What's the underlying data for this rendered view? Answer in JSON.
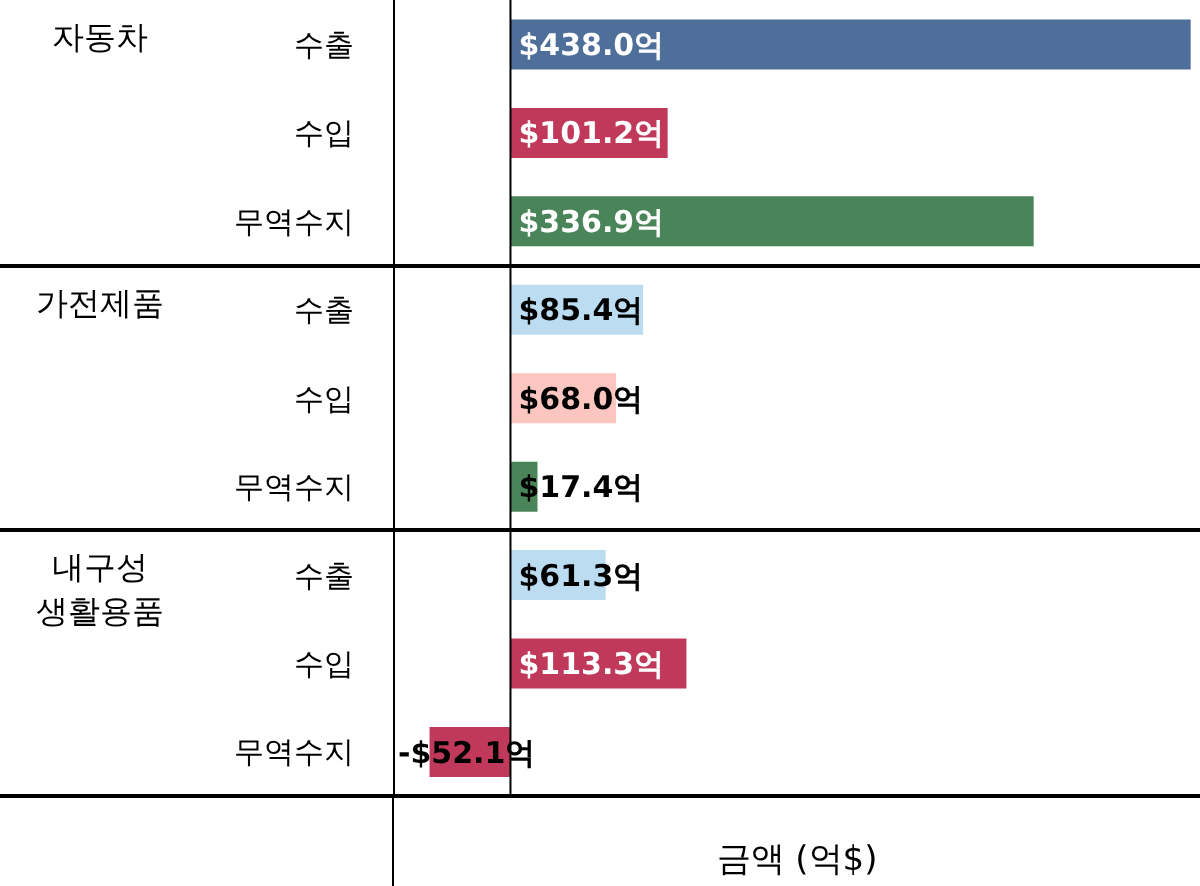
{
  "chart_data": {
    "type": "bar",
    "orientation": "horizontal",
    "xlabel": "금액 (억$)",
    "categories": [
      "수출",
      "수입",
      "무역수지",
      "수출",
      "수입",
      "무역수지",
      "수출",
      "수입",
      "무역수지"
    ],
    "annotations": [
      "자동차",
      "가전제품",
      "내구성\n생활용품"
    ],
    "values": [
      438.0,
      101.2,
      336.9,
      85.4,
      68.0,
      17.4,
      61.3,
      113.3,
      -52.1
    ],
    "value_labels": [
      "$438.0억",
      "$101.2억",
      "$336.9억",
      "$85.4억",
      "$68.0억",
      "$17.4억",
      "$61.3억",
      "$113.3억",
      "-$52.1억"
    ],
    "colors": [
      "#4e6f9a",
      "#c0395a",
      "#4a855a",
      "#bcdcf2",
      "#fbc6c0",
      "#4a855a",
      "#bcdcf2",
      "#c0395a",
      "#c0395a"
    ],
    "xlim": [
      -75,
      444
    ],
    "tick_labels": "y"
  }
}
